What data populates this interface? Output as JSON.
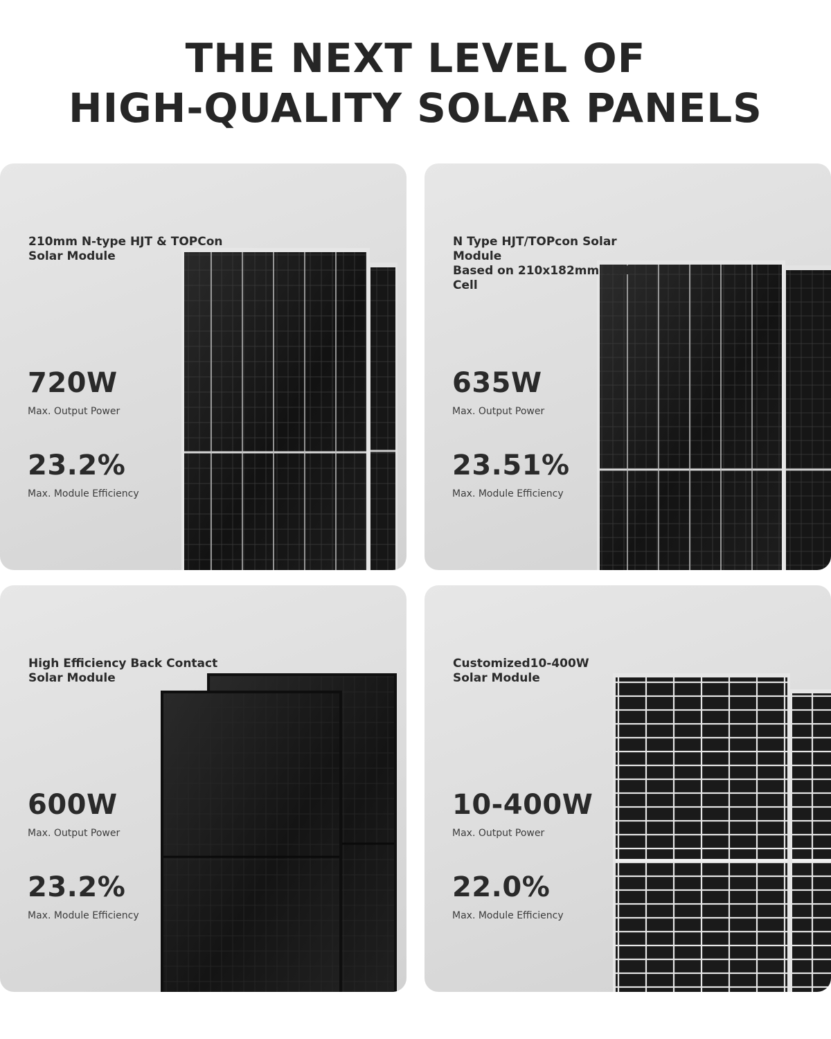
{
  "headline": {
    "line1": "THE NEXT LEVEL OF",
    "line2": "HIGH-QUALITY SOLAR PANELS"
  },
  "products": [
    {
      "title_line1": "210mm N-type HJT & TOPCon",
      "title_line2": "Solar Module",
      "power_value": "720W",
      "power_label": "Max. Output Power",
      "efficiency_value": "23.2%",
      "efficiency_label": "Max. Module Efficiency"
    },
    {
      "title_line1": "N Type HJT/TOPcon Solar Module",
      "title_line2": "Based on 210x182mm Half Cell",
      "power_value": "635W",
      "power_label": "Max. Output Power",
      "efficiency_value": "23.51%",
      "efficiency_label": "Max. Module Efficiency"
    },
    {
      "title_line1": "High Efficiency Back Contact",
      "title_line2": "Solar Module",
      "power_value": "600W",
      "power_label": "Max. Output Power",
      "efficiency_value": "23.2%",
      "efficiency_label": "Max. Module Efficiency"
    },
    {
      "title_line1": "Customized10-400W",
      "title_line2": "Solar Module",
      "power_value": "10-400W",
      "power_label": "Max. Output Power",
      "efficiency_value": "22.0%",
      "efficiency_label": "Max. Module Efficiency"
    }
  ],
  "colors": {
    "text_dark": "#262626",
    "card_bg": "#e0e0e0",
    "panel_black": "#1a1a1a",
    "frame_silver": "#d4d4d4"
  }
}
